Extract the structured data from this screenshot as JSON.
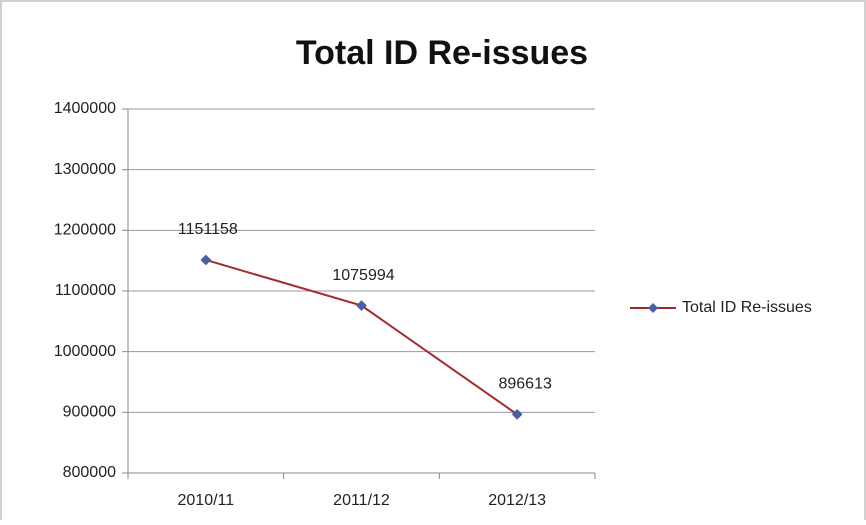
{
  "chart_data": {
    "type": "line",
    "title": "Total ID Re-issues",
    "categories": [
      "2010/11",
      "2011/12",
      "2012/13"
    ],
    "series": [
      {
        "name": "Total ID Re-issues",
        "color": "#a52a2a",
        "marker_color": "#4a5fa8",
        "values": [
          1151158,
          1075994,
          896613
        ]
      }
    ],
    "ylim": [
      800000,
      1400000
    ],
    "yticks": [
      800000,
      900000,
      1000000,
      1100000,
      1200000,
      1300000,
      1400000
    ],
    "grid": true,
    "legend": "right",
    "data_labels": true
  }
}
